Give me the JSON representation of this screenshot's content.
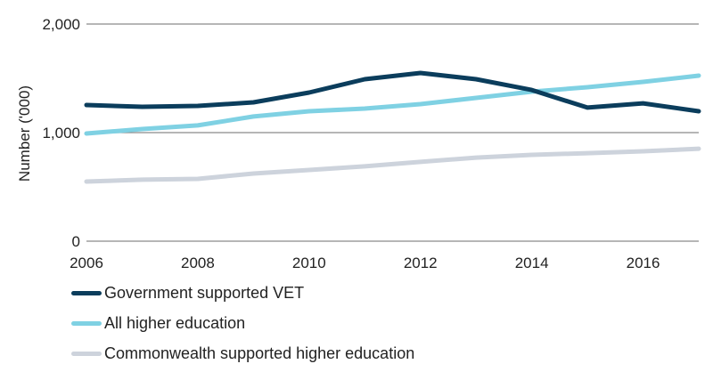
{
  "chart_data": {
    "type": "line",
    "title": "",
    "xlabel": "",
    "ylabel": "Number ('000)",
    "x": [
      2006,
      2007,
      2008,
      2009,
      2010,
      2011,
      2012,
      2013,
      2014,
      2015,
      2016,
      2017
    ],
    "xticks": [
      "2006",
      "2008",
      "2010",
      "2012",
      "2014",
      "2016"
    ],
    "xtick_values": [
      2006,
      2008,
      2010,
      2012,
      2014,
      2016
    ],
    "yticks": [
      "0",
      "1,000",
      "2,000"
    ],
    "ytick_values": [
      0,
      1000,
      2000
    ],
    "xlim": [
      2006,
      2017
    ],
    "ylim": [
      0,
      2000
    ],
    "grid": "horizontal",
    "legend_position": "bottom-left",
    "series": [
      {
        "name": "Government supported VET",
        "color": "#0b3d5c",
        "values": [
          1254,
          1238,
          1246,
          1279,
          1369,
          1492,
          1549,
          1492,
          1393,
          1230,
          1270,
          1197
        ]
      },
      {
        "name": "All higher education",
        "color": "#7fd1e3",
        "values": [
          992,
          1033,
          1066,
          1148,
          1197,
          1221,
          1262,
          1320,
          1377,
          1418,
          1467,
          1525
        ]
      },
      {
        "name": "Commonwealth supported higher education",
        "color": "#cdd3dc",
        "values": [
          549,
          566,
          574,
          623,
          656,
          689,
          730,
          770,
          795,
          811,
          828,
          852
        ]
      }
    ]
  }
}
